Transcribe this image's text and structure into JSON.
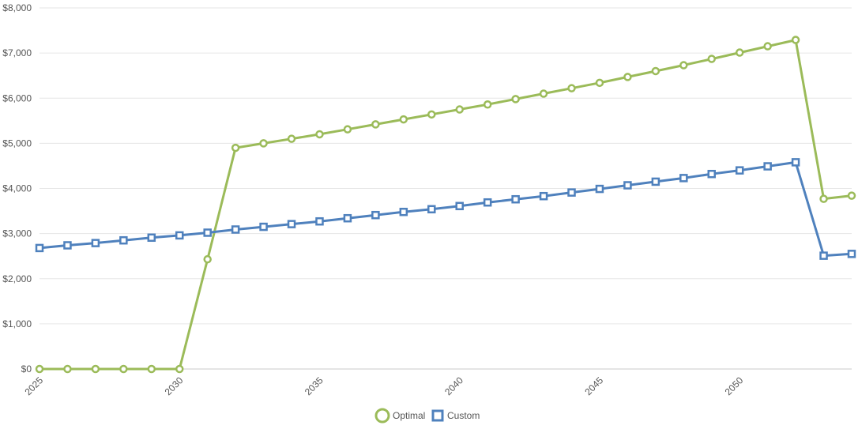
{
  "chart_data": {
    "type": "line",
    "x": [
      2025,
      2026,
      2027,
      2028,
      2029,
      2030,
      2031,
      2032,
      2033,
      2034,
      2035,
      2036,
      2037,
      2038,
      2039,
      2040,
      2041,
      2042,
      2043,
      2044,
      2045,
      2046,
      2047,
      2048,
      2049,
      2050,
      2051,
      2052,
      2053,
      2054
    ],
    "x_ticks": [
      "2025",
      "2030",
      "2035",
      "2040",
      "2045",
      "2050"
    ],
    "x_tick_values": [
      2025,
      2030,
      2035,
      2040,
      2045,
      2050
    ],
    "y_ticks": [
      "$0",
      "$1,000",
      "$2,000",
      "$3,000",
      "$4,000",
      "$5,000",
      "$6,000",
      "$7,000",
      "$8,000"
    ],
    "y_tick_values": [
      0,
      1000,
      2000,
      3000,
      4000,
      5000,
      6000,
      7000,
      8000
    ],
    "ylim": [
      0,
      8000
    ],
    "xlim": [
      2025,
      2054
    ],
    "title": "",
    "xlabel": "",
    "ylabel": "",
    "grid": true,
    "legend_position": "bottom-center",
    "series": [
      {
        "name": "Optimal",
        "color": "#9bbb59",
        "marker": "circle",
        "values": [
          0,
          0,
          0,
          0,
          0,
          0,
          2430,
          4900,
          5000,
          5100,
          5200,
          5310,
          5420,
          5530,
          5640,
          5750,
          5860,
          5980,
          6100,
          6220,
          6340,
          6470,
          6600,
          6730,
          6870,
          7010,
          7150,
          7290,
          3770,
          3840
        ]
      },
      {
        "name": "Custom",
        "color": "#4f81bd",
        "marker": "square",
        "values": [
          2680,
          2740,
          2790,
          2850,
          2910,
          2960,
          3020,
          3090,
          3150,
          3210,
          3270,
          3340,
          3410,
          3480,
          3540,
          3610,
          3690,
          3760,
          3830,
          3910,
          3990,
          4070,
          4150,
          4230,
          4320,
          4400,
          4490,
          4580,
          2510,
          2550
        ]
      }
    ]
  }
}
